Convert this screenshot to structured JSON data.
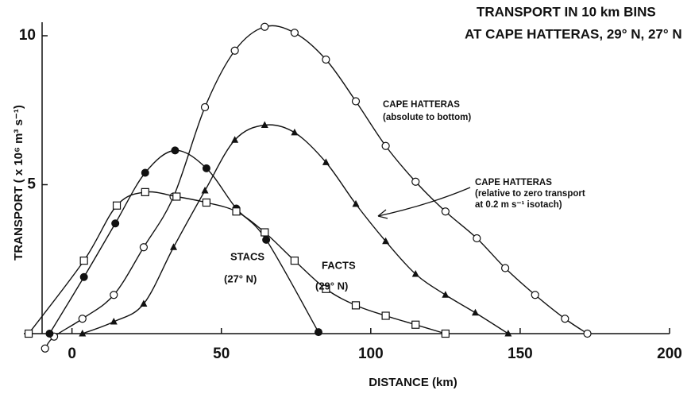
{
  "chart_data": {
    "type": "line",
    "title": [
      "TRANSPORT IN 10 km BINS",
      "AT CAPE HATTERAS, 29° N, 27° N"
    ],
    "x_label": "DISTANCE (km)",
    "y_label": "TRANSPORT ( x 10⁶ m³ s⁻¹)",
    "annotations": [
      [
        "CAPE HATTERAS",
        "(absolute to bottom)"
      ],
      [
        "CAPE HATTERAS",
        "(relative to zero transport",
        "at 0.2 m s⁻¹ isotach)"
      ],
      [
        "STACS",
        "(27° N)"
      ],
      [
        "FACTS",
        "(29° N)"
      ]
    ],
    "xlim": [
      -10,
      200
    ],
    "ylim": [
      0,
      10
    ],
    "xticks": [
      0,
      50,
      100,
      150,
      200
    ],
    "yticks": [
      5,
      10
    ],
    "series": [
      {
        "marker": "open-circle",
        "color": "#111",
        "x": [
          -9,
          -6,
          3.5,
          14,
          24,
          34,
          44.5,
          54.5,
          64.5,
          74.5,
          85,
          95,
          105,
          115,
          125,
          135.5,
          145,
          155,
          165,
          172.5
        ],
        "values": [
          -0.5,
          -0.1,
          0.5,
          1.3,
          2.9,
          4.6,
          7.6,
          9.5,
          10.3,
          10.1,
          9.2,
          7.8,
          6.3,
          5.1,
          4.1,
          3.2,
          2.2,
          1.3,
          0.5,
          0
        ]
      },
      {
        "marker": "triangle",
        "color": "#111",
        "x": [
          3.5,
          14,
          24,
          34,
          44.5,
          54.5,
          64.5,
          74.5,
          85,
          95,
          105,
          115,
          125,
          135,
          146
        ],
        "values": [
          0,
          0.4,
          1,
          2.9,
          4.8,
          6.5,
          7,
          6.75,
          5.75,
          4.35,
          3.1,
          2,
          1.3,
          0.7,
          0
        ]
      },
      {
        "marker": "filled-circle",
        "color": "#111",
        "x": [
          -7.5,
          4,
          14.5,
          24.5,
          34.5,
          45,
          55,
          65,
          82.5
        ],
        "values": [
          0,
          1.9,
          3.7,
          5.4,
          6.15,
          5.55,
          4.2,
          3.15,
          0.05
        ]
      },
      {
        "marker": "square",
        "color": "#111",
        "x": [
          -14.5,
          4,
          15,
          24.5,
          35,
          45,
          55,
          64.5,
          74.5,
          85,
          95,
          105,
          115,
          125
        ],
        "values": [
          0,
          2.45,
          4.3,
          4.75,
          4.6,
          4.4,
          4.1,
          3.4,
          2.45,
          1.5,
          0.95,
          0.6,
          0.3,
          0
        ]
      }
    ]
  }
}
